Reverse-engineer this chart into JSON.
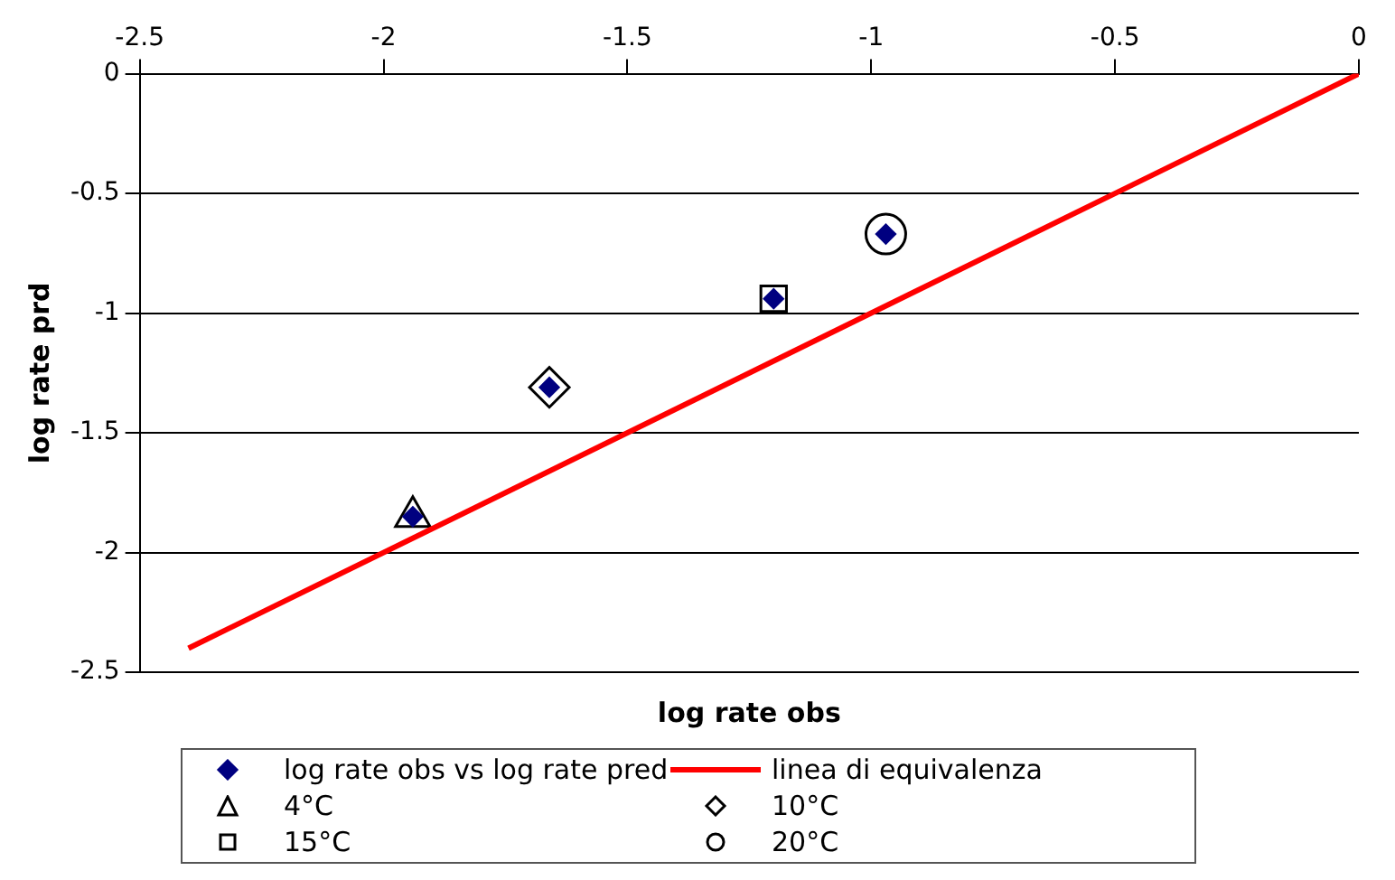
{
  "chart_data": {
    "type": "scatter",
    "xlabel": "log rate obs",
    "ylabel": "log rate prd",
    "xlim": [
      -2.5,
      0
    ],
    "xticks": [
      -2.5,
      -2,
      -1.5,
      -1,
      -0.5,
      0
    ],
    "ylim": [
      -2.5,
      0
    ],
    "yticks": [
      -2.5,
      -2,
      -1.5,
      -1,
      -0.5,
      0
    ],
    "grid": "y",
    "legend": "bottom",
    "series": [
      {
        "name": "4°C",
        "color": "#000000",
        "marker": "triangle",
        "x": [
          -1.94
        ],
        "values": [
          -1.85
        ]
      },
      {
        "name": "10°C",
        "color": "#000000",
        "marker": "diamond",
        "x": [
          -1.66
        ],
        "values": [
          -1.31
        ]
      },
      {
        "name": "15°C",
        "color": "#000000",
        "marker": "square",
        "x": [
          -1.2
        ],
        "values": [
          -0.94
        ]
      },
      {
        "name": "20°C",
        "color": "#000000",
        "marker": "circle",
        "x": [
          -0.97
        ],
        "values": [
          -0.67
        ]
      },
      {
        "name": "log rate obs vs log rate pred",
        "color": "#000080",
        "marker": "diamond",
        "x": [
          -1.94,
          -1.66,
          -1.2,
          -0.97
        ],
        "values": [
          -1.85,
          -1.31,
          -0.94,
          -0.67
        ]
      },
      {
        "name": "linea di equivalenza",
        "type": "line",
        "color": "#ff0000",
        "marker": "none",
        "line_style": "solid",
        "x": [
          -2.4,
          0
        ],
        "values": [
          -2.4,
          0
        ]
      }
    ]
  }
}
